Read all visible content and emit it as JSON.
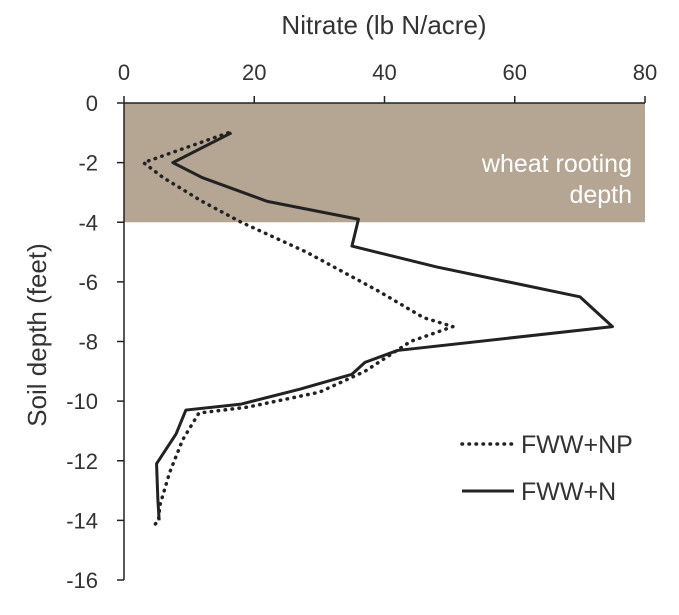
{
  "chart_data": {
    "type": "line",
    "xlabel": "Nitrate (lb N/acre)",
    "ylabel": "Soil depth (feet)",
    "xlim": [
      0,
      80
    ],
    "ylim": [
      -16,
      0
    ],
    "x_ticks": [
      "0",
      "20",
      "40",
      "60",
      "80"
    ],
    "y_ticks": [
      "0",
      "-2",
      "-4",
      "-6",
      "-8",
      "-10",
      "-12",
      "-14",
      "-16"
    ],
    "x_axis_position": "top",
    "grid": false,
    "legend_position": "bottom-right",
    "shaded_band": {
      "label_line1": "wheat rooting",
      "label_line2": "depth",
      "y_from": 0,
      "y_to": -4,
      "color": "#b5a693"
    },
    "series": [
      {
        "name": "FWW+NP",
        "style": "dotted",
        "color": "#222222",
        "points": [
          [
            16,
            -1.0
          ],
          [
            3,
            -2.0
          ],
          [
            6,
            -2.5
          ],
          [
            12,
            -3.3
          ],
          [
            18,
            -4.0
          ],
          [
            28,
            -5.0
          ],
          [
            39,
            -6.3
          ],
          [
            46,
            -7.2
          ],
          [
            50.5,
            -7.5
          ],
          [
            44,
            -8.0
          ],
          [
            37,
            -9.0
          ],
          [
            30,
            -9.7
          ],
          [
            19,
            -10.2
          ],
          [
            11.5,
            -10.4
          ],
          [
            9,
            -11.3
          ],
          [
            7,
            -12.4
          ],
          [
            5.5,
            -13.5
          ],
          [
            5.3,
            -14.0
          ],
          [
            4.5,
            -14.2
          ]
        ]
      },
      {
        "name": "FWW+N",
        "style": "solid",
        "color": "#222222",
        "points": [
          [
            16.5,
            -1.0
          ],
          [
            7.5,
            -2.0
          ],
          [
            12,
            -2.5
          ],
          [
            22,
            -3.3
          ],
          [
            36,
            -3.9
          ],
          [
            35,
            -4.8
          ],
          [
            48,
            -5.5
          ],
          [
            70,
            -6.5
          ],
          [
            75,
            -7.5
          ],
          [
            42,
            -8.3
          ],
          [
            37,
            -8.7
          ],
          [
            35,
            -9.1
          ],
          [
            27,
            -9.6
          ],
          [
            18,
            -10.1
          ],
          [
            9.5,
            -10.3
          ],
          [
            8,
            -11.1
          ],
          [
            5,
            -12.1
          ],
          [
            5.2,
            -13.3
          ],
          [
            5.4,
            -14.0
          ]
        ]
      }
    ]
  }
}
